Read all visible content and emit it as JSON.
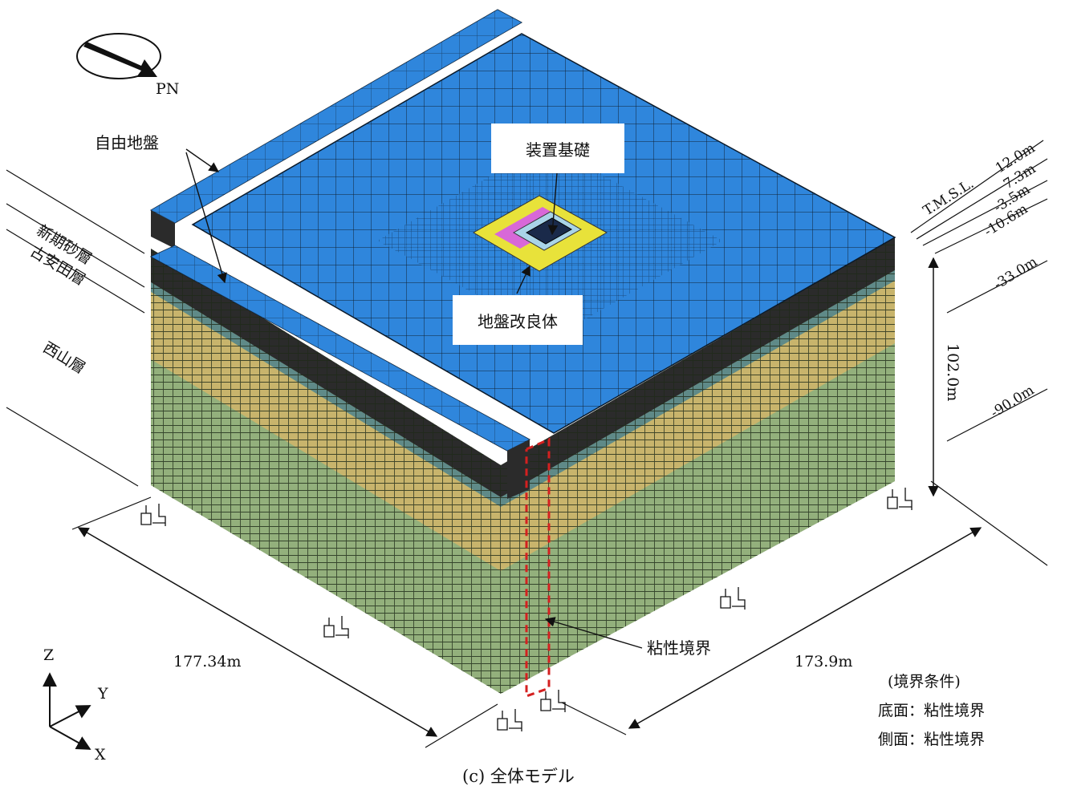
{
  "north_label": "PN",
  "callouts": {
    "free_field": "自由地盤",
    "foundation": "装置基礎",
    "ground_improvement": "地盤改良体",
    "viscous_boundary": "粘性境界"
  },
  "layers": [
    "新期砂層",
    "古安田層",
    "西山層"
  ],
  "elevation_prefix": "T.M.S.L.",
  "elevations": [
    "12.0m",
    "7.3m",
    "-3.5m",
    "-10.6m",
    "-33.0m",
    "-90.0m"
  ],
  "dimensions": {
    "height": "102.0m",
    "width_x": "177.34m",
    "width_y": "173.9m"
  },
  "axes": {
    "z": "Z",
    "y": "Y",
    "x": "X"
  },
  "boundary_conditions": {
    "title": "(境界条件)",
    "bottom": "底面：粘性境界",
    "side": "側面：粘性境界"
  },
  "caption": "(c) 全体モデル",
  "colors": {
    "top_surface": "#2f86dc",
    "sand_layer": "#2b2b2b",
    "yasuda_layer": "#c8b46c",
    "nishiyama_layer": "#93b07c",
    "boundary_line": "#d42020",
    "improvement_body": "#e8e23a",
    "improvement_accent": "#d868d8"
  }
}
